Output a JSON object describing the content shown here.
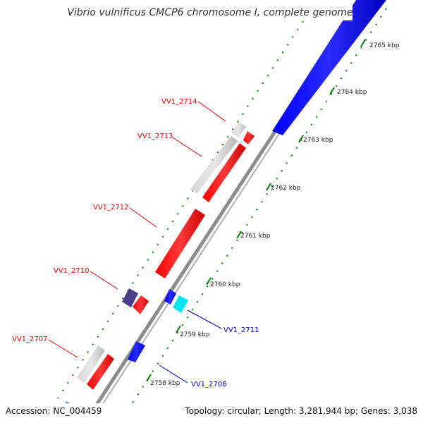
{
  "title": "Vibrio vulnificus CMCP6 chromosome I, complete genome",
  "footer": {
    "accession": "Accession: NC_004459",
    "summary": "Topology: circular; Length: 3,281,944 bp; Genes: 3,038"
  },
  "ticks": [
    {
      "label": "2758 kbp"
    },
    {
      "label": "2759 kbp"
    },
    {
      "label": "2760 kbp"
    },
    {
      "label": "2761 kbp"
    },
    {
      "label": "2762 kbp"
    },
    {
      "label": "2763 kbp"
    },
    {
      "label": "2764 kbp"
    },
    {
      "label": "2765 kbp"
    }
  ],
  "gene_labels": [
    {
      "text": "VV1_2714",
      "color": "#e00000"
    },
    {
      "text": "VV1_2713",
      "color": "#e00000"
    },
    {
      "text": "VV1_2712",
      "color": "#e00000"
    },
    {
      "text": "VV1_2710",
      "color": "#e00000"
    },
    {
      "text": "VV1_2707",
      "color": "#e00000"
    },
    {
      "text": "VV1_2711",
      "color": "#0000cc"
    },
    {
      "text": "VV1_2708",
      "color": "#0000cc"
    }
  ],
  "colors": {
    "forward_cds": "#ff0000",
    "reverse_cds": "#0000ff",
    "pseudo": "#cccccc",
    "purple": "#4b3f8c",
    "cyan": "#00e5ee",
    "steelblue": "#5f8fc0",
    "backbone": "#8c8c8c",
    "tick_dots": "#007a00"
  }
}
